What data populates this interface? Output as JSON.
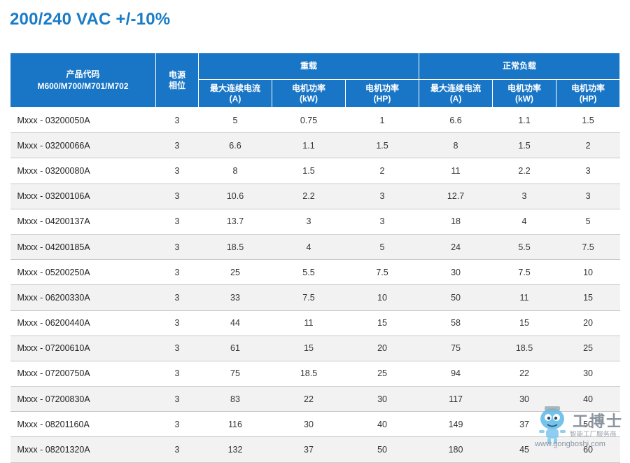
{
  "title": "200/240 VAC +/-10%",
  "table": {
    "header": {
      "product_code_line1": "产品代码",
      "product_code_line2": "M600/M700/M701/M702",
      "phase_line1": "电源",
      "phase_line2": "相位",
      "heavy_duty": "重载",
      "normal_duty": "正常负载",
      "subcols": [
        {
          "line1": "最大连续电流",
          "line2": "(A)"
        },
        {
          "line1": "电机功率",
          "line2": "(kW)"
        },
        {
          "line1": "电机功率",
          "line2": "(HP)"
        },
        {
          "line1": "最大连续电流",
          "line2": "(A)"
        },
        {
          "line1": "电机功率",
          "line2": "(kW)"
        },
        {
          "line1": "电机功率",
          "line2": "(HP)"
        }
      ]
    },
    "rows": [
      {
        "code": "Mxxx - 03200050A",
        "phase": "3",
        "hd_a": "5",
        "hd_kw": "0.75",
        "hd_hp": "1",
        "nd_a": "6.6",
        "nd_kw": "1.1",
        "nd_hp": "1.5"
      },
      {
        "code": "Mxxx - 03200066A",
        "phase": "3",
        "hd_a": "6.6",
        "hd_kw": "1.1",
        "hd_hp": "1.5",
        "nd_a": "8",
        "nd_kw": "1.5",
        "nd_hp": "2"
      },
      {
        "code": "Mxxx - 03200080A",
        "phase": "3",
        "hd_a": "8",
        "hd_kw": "1.5",
        "hd_hp": "2",
        "nd_a": "11",
        "nd_kw": "2.2",
        "nd_hp": "3"
      },
      {
        "code": "Mxxx - 03200106A",
        "phase": "3",
        "hd_a": "10.6",
        "hd_kw": "2.2",
        "hd_hp": "3",
        "nd_a": "12.7",
        "nd_kw": "3",
        "nd_hp": "3"
      },
      {
        "code": "Mxxx - 04200137A",
        "phase": "3",
        "hd_a": "13.7",
        "hd_kw": "3",
        "hd_hp": "3",
        "nd_a": "18",
        "nd_kw": "4",
        "nd_hp": "5"
      },
      {
        "code": "Mxxx - 04200185A",
        "phase": "3",
        "hd_a": "18.5",
        "hd_kw": "4",
        "hd_hp": "5",
        "nd_a": "24",
        "nd_kw": "5.5",
        "nd_hp": "7.5"
      },
      {
        "code": "Mxxx - 05200250A",
        "phase": "3",
        "hd_a": "25",
        "hd_kw": "5.5",
        "hd_hp": "7.5",
        "nd_a": "30",
        "nd_kw": "7.5",
        "nd_hp": "10"
      },
      {
        "code": "Mxxx - 06200330A",
        "phase": "3",
        "hd_a": "33",
        "hd_kw": "7.5",
        "hd_hp": "10",
        "nd_a": "50",
        "nd_kw": "11",
        "nd_hp": "15"
      },
      {
        "code": "Mxxx - 06200440A",
        "phase": "3",
        "hd_a": "44",
        "hd_kw": "11",
        "hd_hp": "15",
        "nd_a": "58",
        "nd_kw": "15",
        "nd_hp": "20"
      },
      {
        "code": "Mxxx - 07200610A",
        "phase": "3",
        "hd_a": "61",
        "hd_kw": "15",
        "hd_hp": "20",
        "nd_a": "75",
        "nd_kw": "18.5",
        "nd_hp": "25"
      },
      {
        "code": "Mxxx - 07200750A",
        "phase": "3",
        "hd_a": "75",
        "hd_kw": "18.5",
        "hd_hp": "25",
        "nd_a": "94",
        "nd_kw": "22",
        "nd_hp": "30"
      },
      {
        "code": "Mxxx - 07200830A",
        "phase": "3",
        "hd_a": "83",
        "hd_kw": "22",
        "hd_hp": "30",
        "nd_a": "117",
        "nd_kw": "30",
        "nd_hp": "40"
      },
      {
        "code": "Mxxx - 08201160A",
        "phase": "3",
        "hd_a": "116",
        "hd_kw": "30",
        "hd_hp": "40",
        "nd_a": "149",
        "nd_kw": "37",
        "nd_hp": "50"
      },
      {
        "code": "Mxxx - 08201320A",
        "phase": "3",
        "hd_a": "132",
        "hd_kw": "37",
        "hd_hp": "50",
        "nd_a": "180",
        "nd_kw": "45",
        "nd_hp": "60"
      }
    ]
  },
  "watermark": {
    "brand": "工博士",
    "subtitle": "智能工厂服务商",
    "url": "www.gongboshi.com",
    "icon": "robot-mascot-icon"
  },
  "colors": {
    "title": "#1a7bc7",
    "header_bg": "#1976c6",
    "row_stripe": "#f2f2f2"
  }
}
